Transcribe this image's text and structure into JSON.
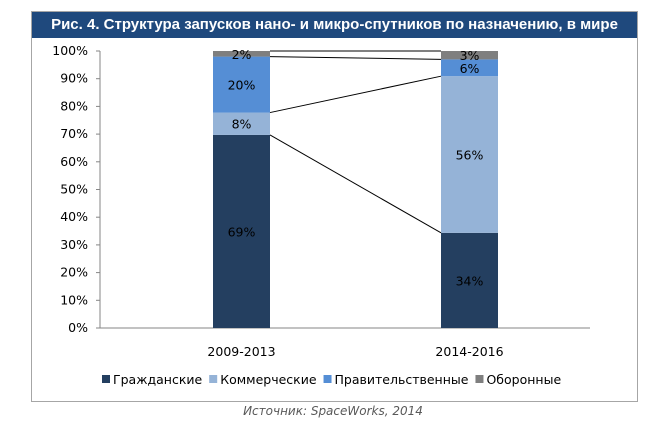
{
  "title": "Рис. 4. Структура запусков нано- и микро-спутников по назначению, в мире",
  "source": "Источник: SpaceWorks, 2014",
  "chart_data": {
    "type": "bar",
    "stacked": true,
    "categories": [
      "2009-2013",
      "2014-2016"
    ],
    "series": [
      {
        "name": "Гражданские",
        "color": "#243f60",
        "values": [
          69,
          34
        ]
      },
      {
        "name": "Коммерческие",
        "color": "#95b3d7",
        "values": [
          8,
          56
        ]
      },
      {
        "name": "Правительственные",
        "color": "#558ed5",
        "values": [
          20,
          6
        ]
      },
      {
        "name": "Оборонные",
        "color": "#7f7f7f",
        "values": [
          2,
          3
        ]
      }
    ],
    "yticks": [
      "0%",
      "10%",
      "20%",
      "30%",
      "40%",
      "50%",
      "60%",
      "70%",
      "80%",
      "90%",
      "100%"
    ],
    "ylim": [
      0,
      100
    ],
    "legend": "bottom",
    "series_lines": true
  }
}
